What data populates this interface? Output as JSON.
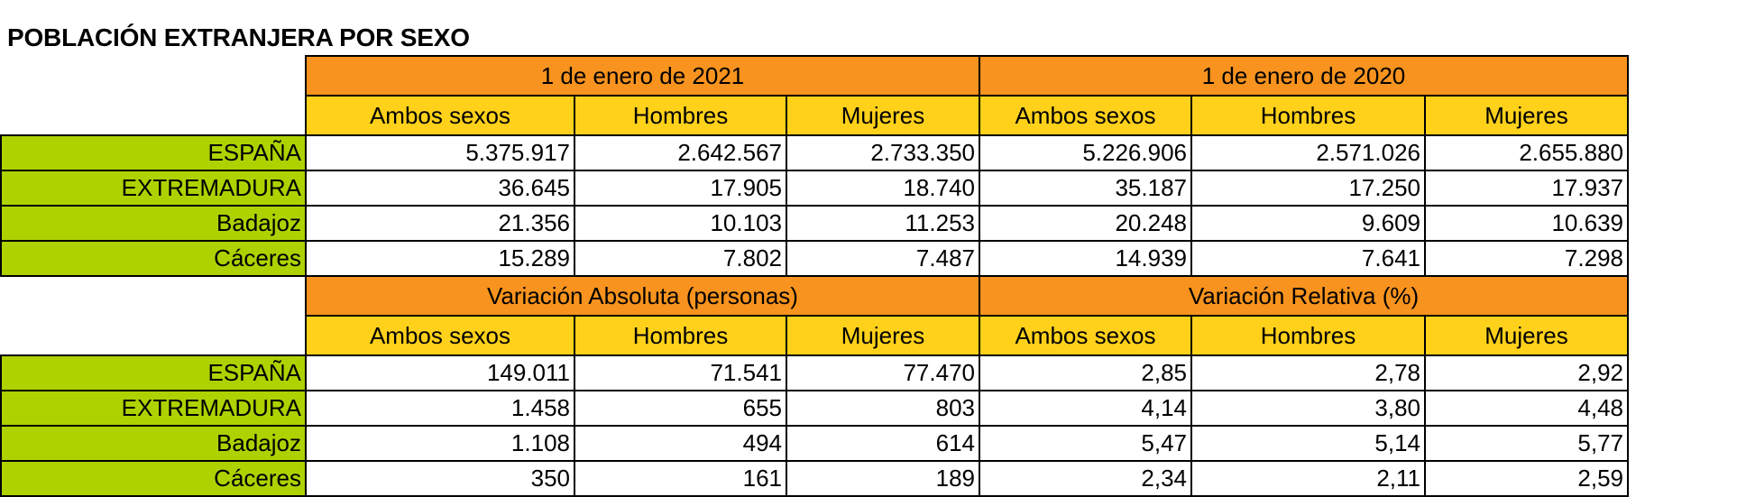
{
  "title": "POBLACIÓN EXTRANJERA POR SEXO",
  "colors": {
    "group_header": "#F7931E",
    "sub_header": "#FFD11A",
    "region_label": "#ADD200"
  },
  "section1": {
    "groups": [
      "1 de enero de 2021",
      "1 de enero de 2020"
    ],
    "subheaders": [
      "Ambos sexos",
      "Hombres",
      "Mujeres",
      "Ambos sexos",
      "Hombres",
      "Mujeres"
    ],
    "rows": [
      {
        "region": "ESPAÑA",
        "values": [
          "5.375.917",
          "2.642.567",
          "2.733.350",
          "5.226.906",
          "2.571.026",
          "2.655.880"
        ]
      },
      {
        "region": "EXTREMADURA",
        "values": [
          "36.645",
          "17.905",
          "18.740",
          "35.187",
          "17.250",
          "17.937"
        ]
      },
      {
        "region": "Badajoz",
        "values": [
          "21.356",
          "10.103",
          "11.253",
          "20.248",
          "9.609",
          "10.639"
        ]
      },
      {
        "region": "Cáceres",
        "values": [
          "15.289",
          "7.802",
          "7.487",
          "14.939",
          "7.641",
          "7.298"
        ]
      }
    ]
  },
  "section2": {
    "groups": [
      "Variación Absoluta (personas)",
      "Variación Relativa (%)"
    ],
    "subheaders": [
      "Ambos sexos",
      "Hombres",
      "Mujeres",
      "Ambos sexos",
      "Hombres",
      "Mujeres"
    ],
    "rows": [
      {
        "region": "ESPAÑA",
        "values": [
          "149.011",
          "71.541",
          "77.470",
          "2,85",
          "2,78",
          "2,92"
        ]
      },
      {
        "region": "EXTREMADURA",
        "values": [
          "1.458",
          "655",
          "803",
          "4,14",
          "3,80",
          "4,48"
        ]
      },
      {
        "region": "Badajoz",
        "values": [
          "1.108",
          "494",
          "614",
          "5,47",
          "5,14",
          "5,77"
        ]
      },
      {
        "region": "Cáceres",
        "values": [
          "350",
          "161",
          "189",
          "2,34",
          "2,11",
          "2,59"
        ]
      }
    ]
  }
}
